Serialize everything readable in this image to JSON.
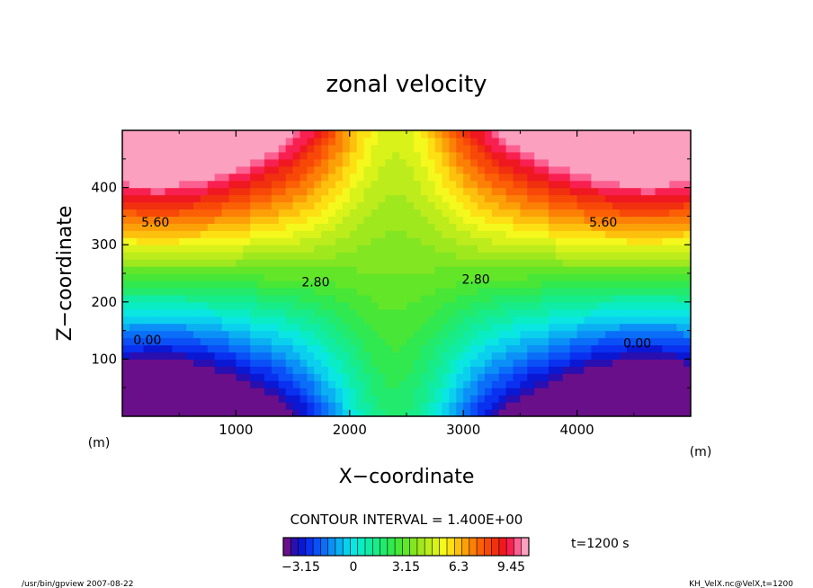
{
  "chart_data": {
    "type": "heatmap",
    "title": "zonal velocity",
    "xlabel": "X−coordinate",
    "ylabel": "Z−coordinate",
    "x_unit": "(m)",
    "y_unit": "(m)",
    "xlim": [
      0,
      5000
    ],
    "ylim": [
      0,
      500
    ],
    "x_ticks": [
      1000,
      2000,
      3000,
      4000
    ],
    "y_ticks": [
      100,
      200,
      300,
      400
    ],
    "contour_interval_text": "CONTOUR INTERVAL = 1.400E+00",
    "contour_labels": [
      {
        "text": "5.60",
        "x": 290,
        "y": 340
      },
      {
        "text": "5.60",
        "x": 4230,
        "y": 340
      },
      {
        "text": "2.80",
        "x": 1700,
        "y": 235
      },
      {
        "text": "2.80",
        "x": 3110,
        "y": 240
      },
      {
        "text": "0.00",
        "x": 220,
        "y": 134
      },
      {
        "text": "0.00",
        "x": 4530,
        "y": 128
      }
    ],
    "colorbar": {
      "min": -4.2,
      "max": 10.5,
      "tick_labels": [
        "−3.15",
        "0",
        "3.15",
        "6.3",
        "9.45"
      ],
      "tick_values": [
        -3.15,
        0,
        3.15,
        6.3,
        9.45
      ],
      "colors": [
        "#6a0f8a",
        "#2a0fb0",
        "#0a18d4",
        "#0a30f0",
        "#0a50f6",
        "#0a6ef8",
        "#0a90f6",
        "#0ab0f2",
        "#0ad0ee",
        "#0ae6e2",
        "#0aecc4",
        "#10eca4",
        "#18ec88",
        "#22ea6c",
        "#30e850",
        "#48e636",
        "#64e628",
        "#82e622",
        "#a0e81e",
        "#bcec1c",
        "#d8f21a",
        "#f4f81c",
        "#fde014",
        "#fdc00c",
        "#fca008",
        "#fc8006",
        "#fb6006",
        "#f84808",
        "#f0300e",
        "#f01820",
        "#f82050",
        "#fc6090",
        "#fca0c0"
      ]
    },
    "annotations": {
      "time_text": "t=1200 s",
      "footer_left": "/usr/bin/gpview  2007-08-22",
      "footer_right": "KH_VelX.nc@VelX,t=1200"
    }
  }
}
